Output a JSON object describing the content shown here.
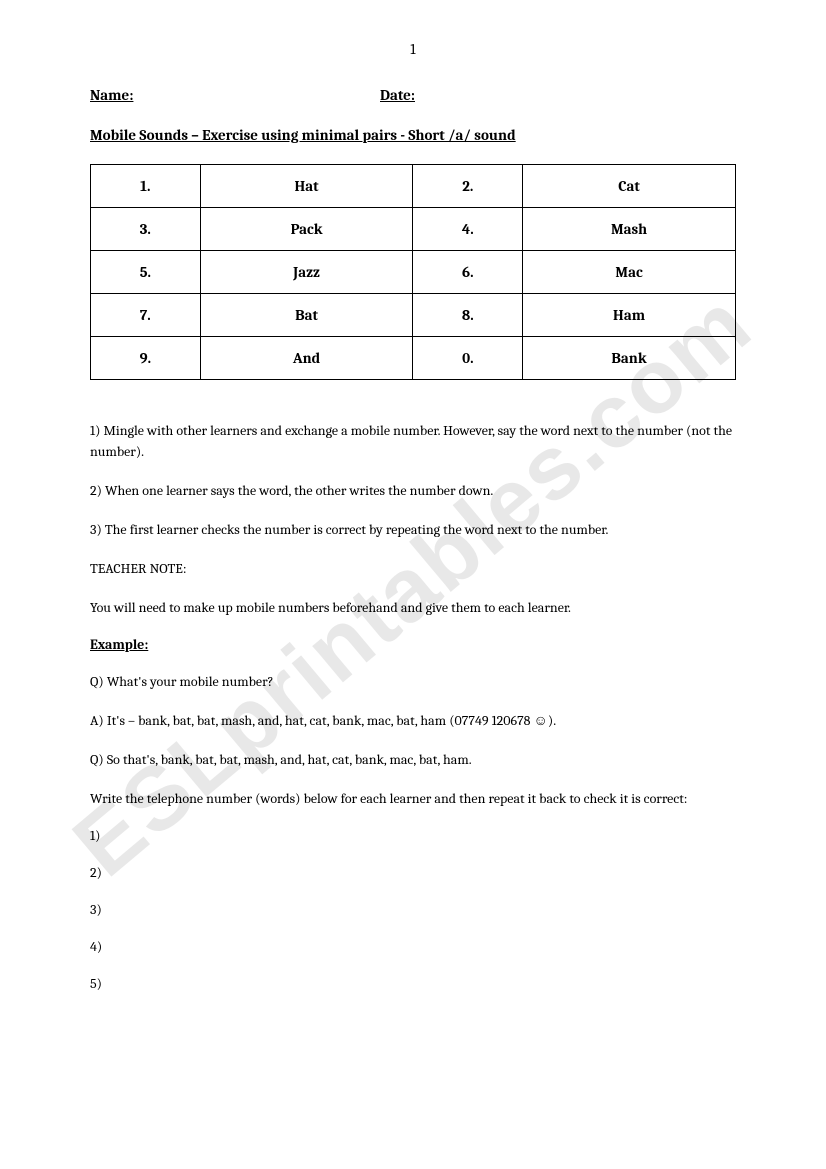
{
  "page_number": "1",
  "header": {
    "name_label": "Name:",
    "date_label": "Date:"
  },
  "title": "Mobile Sounds – Exercise using minimal pairs  - Short /a/ sound",
  "table": {
    "rows": [
      {
        "n1": "1.",
        "w1": "Hat",
        "n2": "2.",
        "w2": "Cat"
      },
      {
        "n1": "3.",
        "w1": "Pack",
        "n2": "4.",
        "w2": "Mash"
      },
      {
        "n1": "5.",
        "w1": "Jazz",
        "n2": "6.",
        "w2": "Mac"
      },
      {
        "n1": "7.",
        "w1": "Bat",
        "n2": "8.",
        "w2": "Ham"
      },
      {
        "n1": "9.",
        "w1": "And",
        "n2": "0.",
        "w2": "Bank"
      }
    ]
  },
  "instructions": [
    "1) Mingle with other learners and exchange a mobile number. However, say the word next to the number (not the number).",
    "2) When one learner says the word, the other writes the number down.",
    "3) The first learner checks the number is correct by repeating the word next to the number.",
    "TEACHER NOTE:",
    "You will need to make up mobile numbers beforehand and give them to each learner."
  ],
  "example_label": "Example:",
  "example": [
    "Q) What's your mobile number?",
    "A) It's – bank, bat, bat, mash, and, hat, cat, bank, mac, bat, ham (07749 120678 ☺).",
    "Q) So that's, bank, bat, bat, mash, and, hat, cat, bank, mac, bat, ham.",
    "Write the telephone number (words) below for each learner and then repeat it back to check it is correct:"
  ],
  "answer_lines": [
    "1)",
    "2)",
    "3)",
    "4)",
    "5)"
  ],
  "watermark": "ESLprintables.com"
}
